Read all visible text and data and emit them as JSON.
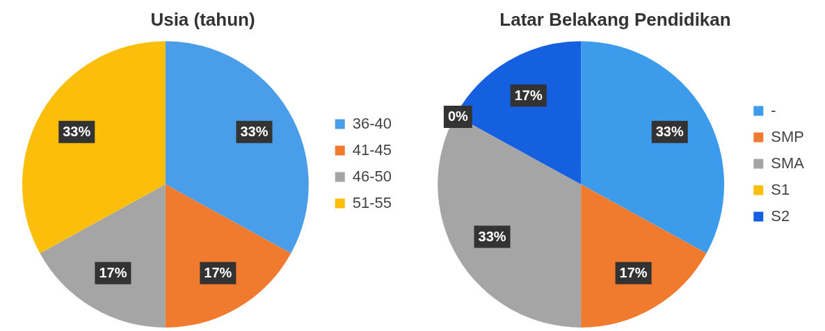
{
  "chart_data": [
    {
      "type": "pie",
      "title": "Usia (tahun)",
      "categories": [
        "36-40",
        "41-45",
        "46-50",
        "51-55"
      ],
      "values": [
        33,
        17,
        17,
        33
      ],
      "colors": [
        "#4a9de8",
        "#f07a2e",
        "#a5a5a5",
        "#fbbf0b"
      ],
      "value_labels": [
        "33%",
        "17%",
        "17%",
        "33%"
      ],
      "legend": "right"
    },
    {
      "type": "pie",
      "title": "Latar Belakang Pendidikan",
      "categories": [
        "-",
        "SMP",
        "SMA",
        "S1",
        "S2"
      ],
      "values": [
        33,
        17,
        33,
        0,
        17
      ],
      "colors": [
        "#3d9bec",
        "#f07a2e",
        "#a5a5a5",
        "#fbbf0b",
        "#1560e0"
      ],
      "value_labels": [
        "33%",
        "17%",
        "33%",
        "0%",
        "17%"
      ],
      "legend": "right"
    }
  ]
}
